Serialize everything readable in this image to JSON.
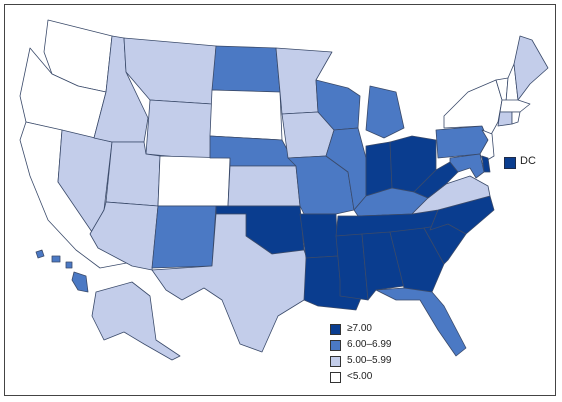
{
  "colors": {
    "c1": "#0a3d8f",
    "c2": "#4b79c4",
    "c3": "#c3cdea",
    "c4": "#ffffff"
  },
  "legend": {
    "items": [
      {
        "label": "≥7.00",
        "cls": "c1"
      },
      {
        "label": "6.00–6.99",
        "cls": "c2"
      },
      {
        "label": "5.00–5.99",
        "cls": "c3"
      },
      {
        "label": "<5.00",
        "cls": "c4"
      }
    ]
  },
  "dc_label": "DC",
  "states": {
    "WA": "c4",
    "OR": "c4",
    "CA": "c4",
    "NV": "c3",
    "ID": "c3",
    "MT": "c3",
    "WY": "c3",
    "UT": "c3",
    "AZ": "c3",
    "CO": "c4",
    "NM": "c2",
    "ND": "c2",
    "SD": "c4",
    "NE": "c2",
    "KS": "c3",
    "OK": "c1",
    "TX": "c3",
    "MN": "c3",
    "IA": "c3",
    "MO": "c2",
    "AR": "c1",
    "LA": "c1",
    "WI": "c2",
    "IL": "c2",
    "MI": "c2",
    "IN": "c1",
    "OH": "c1",
    "KY": "c2",
    "TN": "c1",
    "MS": "c1",
    "AL": "c1",
    "GA": "c1",
    "FL": "c2",
    "SC": "c1",
    "NC": "c1",
    "VA": "c3",
    "WV": "c1",
    "PA": "c2",
    "NY": "c4",
    "VT": "c4",
    "NH": "c4",
    "ME": "c3",
    "MA": "c4",
    "CT": "c3",
    "RI": "c4",
    "NJ": "c4",
    "DE": "c1",
    "MD": "c2",
    "AK": "c3",
    "HI": "c2"
  }
}
